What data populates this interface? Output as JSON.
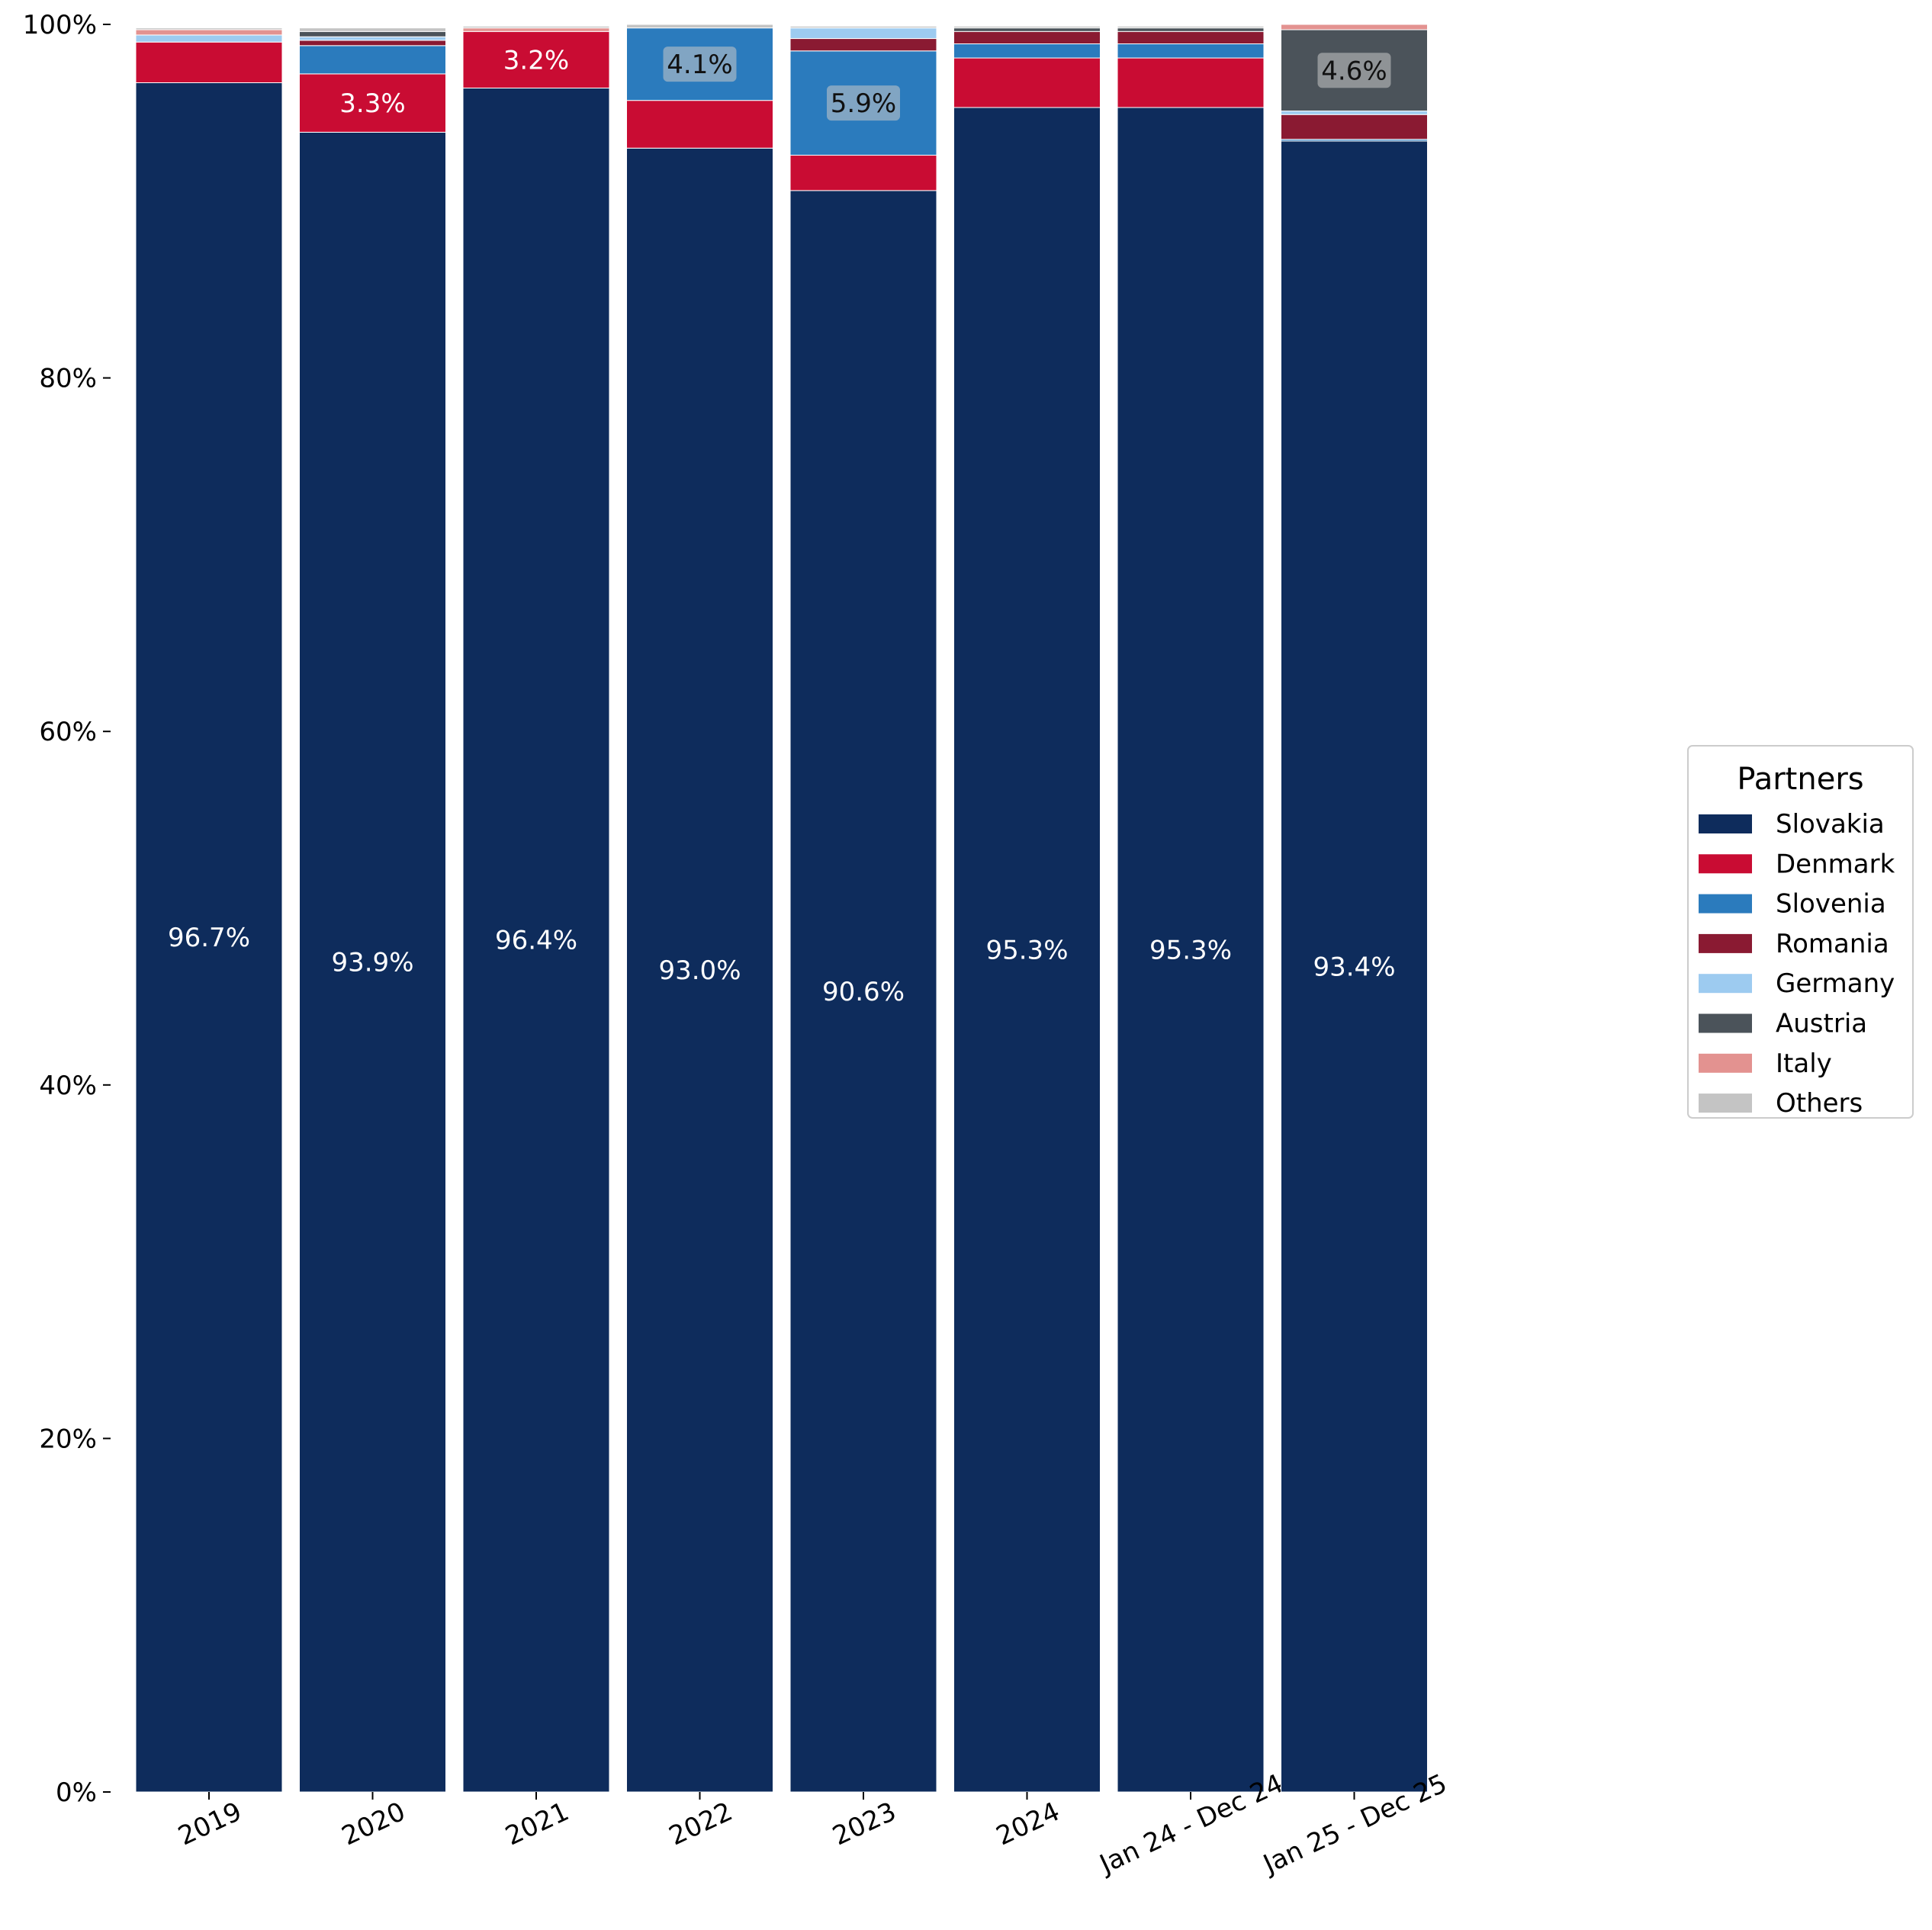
{
  "chart_data": {
    "type": "bar",
    "stacked": true,
    "normalized": true,
    "title": "",
    "xlabel": "",
    "ylabel": "",
    "ylim": [
      0,
      100
    ],
    "y_ticks": [
      "0%",
      "20%",
      "40%",
      "60%",
      "80%",
      "100%"
    ],
    "grid": false,
    "categories": [
      "2019",
      "2020",
      "2021",
      "2022",
      "2023",
      "2024",
      "Jan 24 - Dec 24",
      "Jan 25 - Dec 25"
    ],
    "series": [
      {
        "name": "Slovakia",
        "color": "#0e2c5c",
        "values": [
          96.7,
          93.9,
          96.4,
          93.0,
          90.6,
          95.3,
          95.3,
          93.4
        ]
      },
      {
        "name": "Denmark",
        "color": "#c90c33",
        "values": [
          2.3,
          3.3,
          3.2,
          2.7,
          2.0,
          2.8,
          2.8,
          0.0
        ]
      },
      {
        "name": "Slovenia",
        "color": "#2b7bbd",
        "values": [
          0.0,
          1.6,
          0.0,
          4.1,
          5.9,
          0.8,
          0.8,
          0.1
        ]
      },
      {
        "name": "Romania",
        "color": "#8a1a32",
        "values": [
          0.0,
          0.3,
          0.0,
          0.0,
          0.7,
          0.7,
          0.7,
          1.4
        ]
      },
      {
        "name": "Germany",
        "color": "#9dcbf0",
        "values": [
          0.4,
          0.2,
          0.0,
          0.0,
          0.6,
          0.0,
          0.0,
          0.2
        ]
      },
      {
        "name": "Austria",
        "color": "#4b535a",
        "values": [
          0.0,
          0.3,
          0.0,
          0.0,
          0.0,
          0.2,
          0.2,
          4.6
        ]
      },
      {
        "name": "Italy",
        "color": "#e39290",
        "values": [
          0.3,
          0.0,
          0.2,
          0.0,
          0.0,
          0.0,
          0.0,
          0.3
        ]
      },
      {
        "name": "Others",
        "color": "#c4c4c4",
        "values": [
          0.1,
          0.2,
          0.1,
          0.2,
          0.1,
          0.1,
          0.1,
          0.0
        ]
      }
    ],
    "data_labels": [
      {
        "category": "2019",
        "series": "Slovakia",
        "text": "96.7%"
      },
      {
        "category": "2020",
        "series": "Slovakia",
        "text": "93.9%"
      },
      {
        "category": "2020",
        "series": "Denmark",
        "text": "3.3%"
      },
      {
        "category": "2021",
        "series": "Slovakia",
        "text": "96.4%"
      },
      {
        "category": "2021",
        "series": "Denmark",
        "text": "3.2%"
      },
      {
        "category": "2022",
        "series": "Slovakia",
        "text": "93.0%"
      },
      {
        "category": "2022",
        "series": "Slovenia",
        "text": "4.1%",
        "boxed": true
      },
      {
        "category": "2023",
        "series": "Slovakia",
        "text": "90.6%"
      },
      {
        "category": "2023",
        "series": "Slovenia",
        "text": "5.9%",
        "boxed": true
      },
      {
        "category": "2024",
        "series": "Slovakia",
        "text": "95.3%"
      },
      {
        "category": "Jan 24 - Dec 24",
        "series": "Slovakia",
        "text": "95.3%"
      },
      {
        "category": "Jan 25 - Dec 25",
        "series": "Slovakia",
        "text": "93.4%"
      },
      {
        "category": "Jan 25 - Dec 25",
        "series": "Austria",
        "text": "4.6%",
        "boxed": true
      }
    ],
    "legend": {
      "title": "Partners",
      "placement": "right",
      "entries": [
        "Slovakia",
        "Denmark",
        "Slovenia",
        "Romania",
        "Germany",
        "Austria",
        "Italy",
        "Others"
      ]
    }
  }
}
